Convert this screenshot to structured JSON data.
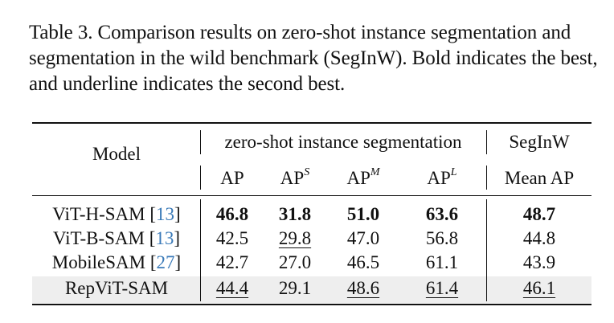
{
  "caption": "Table 3. Comparison results on zero-shot instance segmentation and segmentation in the wild benchmark (SegInW). Bold indicates the best, and underline indicates the second best.",
  "header": {
    "model": "Model",
    "group_zero_shot": "zero-shot instance segmentation",
    "group_seginw": "SegInW",
    "ap": "AP",
    "ap_base": "AP",
    "sup_s": "S",
    "sup_m": "M",
    "sup_l": "L",
    "mean_ap": "Mean AP"
  },
  "rows": [
    {
      "model": "ViT-H-SAM ",
      "ref": "13",
      "ap": "46.8",
      "aps": "31.8",
      "apm": "51.0",
      "apl": "63.6",
      "mean": "48.7"
    },
    {
      "model": "ViT-B-SAM ",
      "ref": "13",
      "ap": "42.5",
      "aps": "29.8",
      "apm": "47.0",
      "apl": "56.8",
      "mean": "44.8"
    },
    {
      "model": "MobileSAM ",
      "ref": "27",
      "ap": "42.7",
      "aps": "27.0",
      "apm": "46.5",
      "apl": "61.1",
      "mean": "43.9"
    },
    {
      "model": "RepViT-SAM",
      "ref": "",
      "ap": "44.4",
      "aps": "29.1",
      "apm": "48.6",
      "apl": "61.4",
      "mean": "46.1"
    }
  ]
}
